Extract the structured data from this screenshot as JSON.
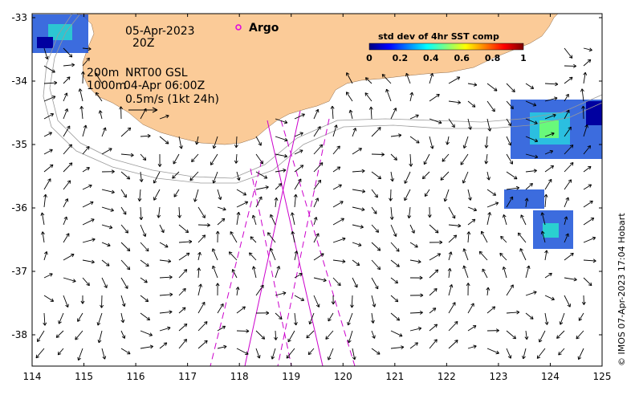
{
  "map": {
    "date": "05-Apr-2023",
    "time": "20Z",
    "depth_200": "200m",
    "depth_1000": "1000m",
    "product": "NRT00 GSL",
    "product_time": "04-Apr 06:00Z",
    "scale_label": "0.5m/s (1kt 24h)",
    "argo_label": "Argo",
    "credit": "© IMOS 07-Apr-2023 17:04 Hobart"
  },
  "colorbar": {
    "title": "std dev of 4hr SST comp",
    "ticks": [
      "0",
      "0.2",
      "0.4",
      "0.6",
      "0.8",
      "1"
    ],
    "colors": [
      "#00007f",
      "#0000ff",
      "#007fff",
      "#00ffff",
      "#7fff7f",
      "#ffff00",
      "#ff7f00",
      "#ff0000",
      "#7f0000"
    ]
  },
  "axes": {
    "x_ticks": [
      "114",
      "115",
      "116",
      "117",
      "118",
      "119",
      "120",
      "121",
      "122",
      "123",
      "124",
      "125"
    ],
    "y_ticks": [
      "-33",
      "-34",
      "-35",
      "-36",
      "-37",
      "-38"
    ],
    "lon_range": [
      114,
      125
    ],
    "lat_range": [
      -38.5,
      -33
    ]
  },
  "colors": {
    "land": "#fbcb98",
    "argo": "#e000e0",
    "track": "#cc00cc",
    "arrows": "#000000",
    "contours": "#999999"
  }
}
